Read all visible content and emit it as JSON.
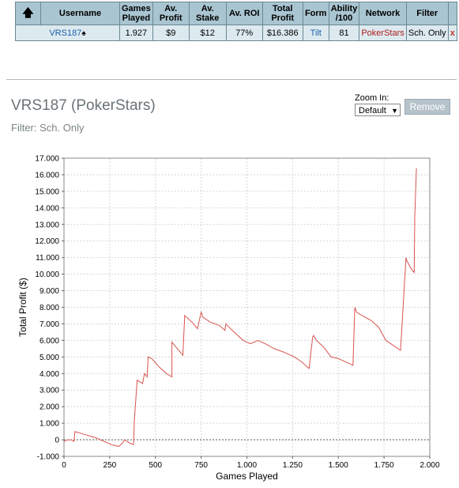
{
  "table": {
    "headers": [
      "Username",
      "Games Played",
      "Av. Profit",
      "Av. Stake",
      "Av. ROI",
      "Total Profit",
      "Form",
      "Ability /100",
      "Network",
      "Filter"
    ],
    "row": {
      "username": "VRS187",
      "games_played": "1.927",
      "av_profit": "$9",
      "av_stake": "$12",
      "av_roi": "77%",
      "total_profit": "$16.386",
      "form": "Tilt",
      "ability": "81",
      "network": "PokerStars",
      "filter": "Sch. Only",
      "remove": "x"
    }
  },
  "header": {
    "title": "VRS187 (PokerStars)",
    "filter": "Filter: Sch. Only"
  },
  "zoom": {
    "label": "Zoom In:",
    "selected": "Default"
  },
  "remove_button": "Remove",
  "colors": {
    "header_bg": "#a9c5d1",
    "row_bg": "#dceaf0",
    "line": "#d9534f",
    "link": "#1a5fa8"
  },
  "chart_data": {
    "type": "line",
    "xlabel": "Games Played",
    "ylabel": "Total Profit ($)",
    "xlim": [
      0,
      2000
    ],
    "ylim": [
      -1000,
      17000
    ],
    "x_ticks": [
      0,
      250,
      500,
      750,
      1000,
      1250,
      1500,
      1750,
      2000
    ],
    "x_tick_labels": [
      "0",
      "250",
      "500",
      "750",
      "1.000",
      "1.250",
      "1.500",
      "1.750",
      "2.000"
    ],
    "y_ticks": [
      -1000,
      0,
      1000,
      2000,
      3000,
      4000,
      5000,
      6000,
      7000,
      8000,
      9000,
      10000,
      11000,
      12000,
      13000,
      14000,
      15000,
      16000,
      17000
    ],
    "y_tick_labels": [
      "-1.000",
      "0",
      "1.000",
      "2.000",
      "3.000",
      "4.000",
      "5.000",
      "6.000",
      "7.000",
      "8.000",
      "9.000",
      "10.000",
      "11.000",
      "12.000",
      "13.000",
      "14.000",
      "15.000",
      "16.000",
      "17.000"
    ],
    "grid": true,
    "zero_line": true,
    "series": [
      {
        "x": [
          0,
          20,
          40,
          55,
          60,
          90,
          120,
          150,
          180,
          220,
          260,
          300,
          320,
          330,
          360,
          380,
          385,
          400,
          430,
          440,
          455,
          460,
          480,
          520,
          560,
          590,
          590,
          620,
          650,
          660,
          670,
          700,
          730,
          750,
          760,
          800,
          850,
          880,
          885,
          920,
          980,
          1020,
          1060,
          1100,
          1150,
          1200,
          1260,
          1300,
          1340,
          1360,
          1365,
          1380,
          1420,
          1460,
          1500,
          1540,
          1580,
          1590,
          1600,
          1630,
          1680,
          1720,
          1760,
          1800,
          1840,
          1870,
          1875,
          1900,
          1915,
          1918,
          1927
        ],
        "y": [
          -100,
          0,
          0,
          -100,
          500,
          400,
          300,
          200,
          100,
          -100,
          -300,
          -400,
          -200,
          0,
          -200,
          -300,
          1200,
          3600,
          3400,
          4000,
          3800,
          5000,
          4900,
          4400,
          4000,
          3800,
          5900,
          5500,
          5100,
          7500,
          7400,
          7100,
          6700,
          7700,
          7400,
          7100,
          6900,
          6600,
          7000,
          6600,
          6000,
          5800,
          6000,
          5800,
          5500,
          5300,
          5000,
          4700,
          4300,
          6200,
          6300,
          6000,
          5600,
          5000,
          4900,
          4700,
          4500,
          8000,
          7700,
          7500,
          7200,
          6800,
          6000,
          5700,
          5400,
          11000,
          10800,
          10300,
          10100,
          13500,
          16400
        ]
      }
    ]
  }
}
